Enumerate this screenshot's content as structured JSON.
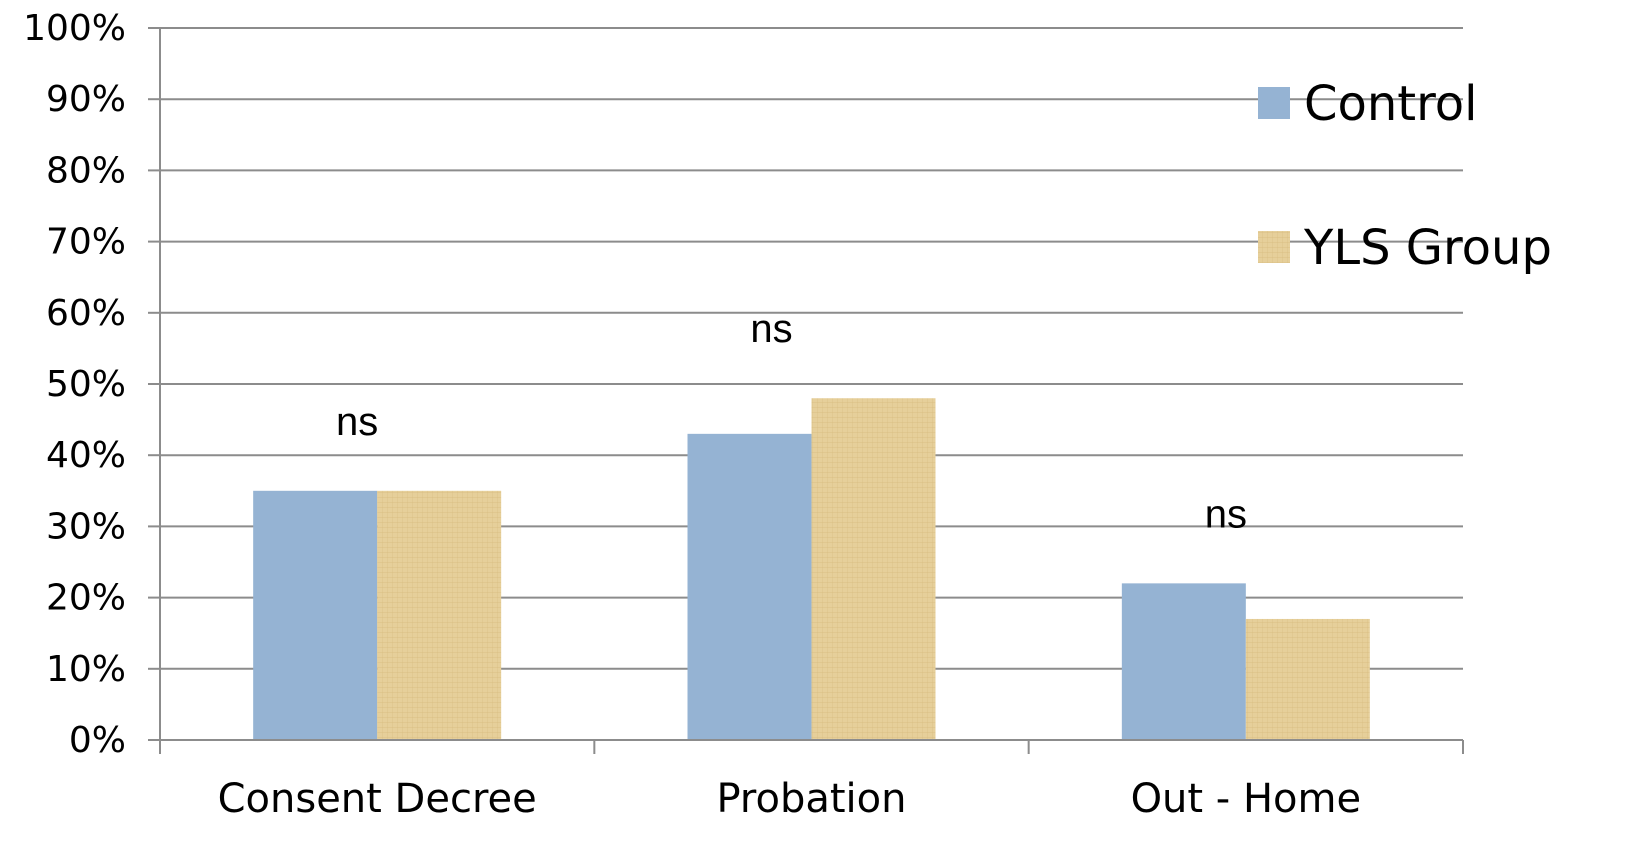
{
  "chart_data": {
    "type": "bar",
    "categories": [
      "Consent Decree",
      "Probation",
      "Out - Home"
    ],
    "series": [
      {
        "name": "Control",
        "values": [
          35,
          43,
          22
        ]
      },
      {
        "name": "YLS Group",
        "values": [
          35,
          48,
          17
        ]
      }
    ],
    "annotations": [
      "ns",
      "ns",
      "ns"
    ],
    "yticks": [
      "0%",
      "10%",
      "20%",
      "30%",
      "40%",
      "50%",
      "60%",
      "70%",
      "80%",
      "90%",
      "100%"
    ],
    "ylim": [
      0,
      100
    ],
    "grid": true,
    "legend": "right",
    "colors": {
      "control": "#95b3d3",
      "yls": "#e6cf9a",
      "yls_texture": "#d2b67a",
      "grid": "#8c8c8c",
      "axis": "#8c8c8c"
    }
  }
}
